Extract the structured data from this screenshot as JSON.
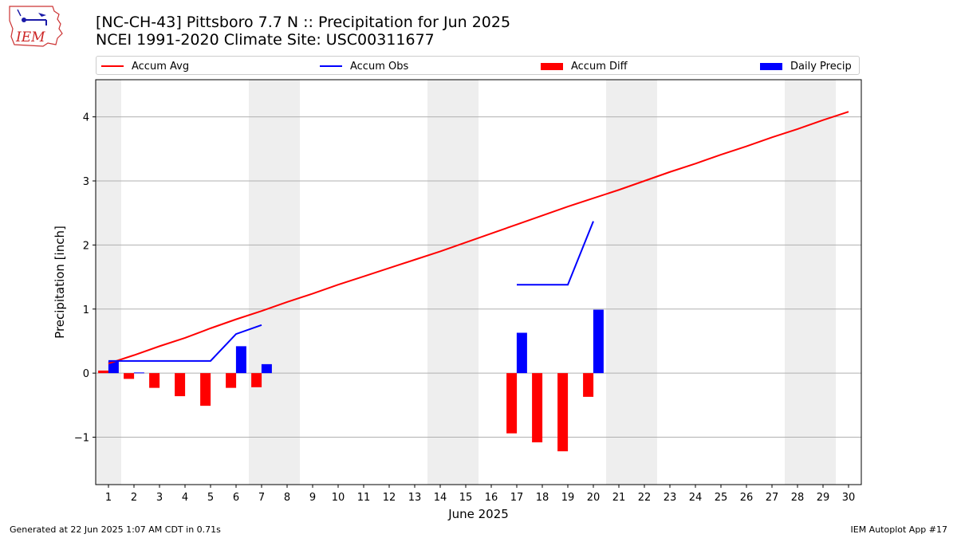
{
  "header": {
    "logo_text": "IEM",
    "title_line1": "[NC-CH-43] Pittsboro 7.7 N :: Precipitation for Jun 2025",
    "title_line2": "NCEI 1991-2020 Climate Site: USC00311677"
  },
  "legend": {
    "items": [
      {
        "label": "Accum Avg",
        "color": "#ff0000",
        "kind": "line"
      },
      {
        "label": "Accum Obs",
        "color": "#0000ff",
        "kind": "line"
      },
      {
        "label": "Accum Diff",
        "color": "#ff0000",
        "kind": "bar"
      },
      {
        "label": "Daily Precip",
        "color": "#0000ff",
        "kind": "bar"
      }
    ]
  },
  "footer": {
    "left": "Generated at 22 Jun 2025 1:07 AM CDT in 0.71s",
    "right": "IEM Autoplot App #17"
  },
  "chart_data": {
    "type": "bar",
    "xlabel": "June 2025",
    "ylabel": "Precipitation [inch]",
    "xlim": [
      0.5,
      30.5
    ],
    "ylim": [
      -1.74,
      4.58
    ],
    "yticks": [
      -1,
      0,
      1,
      2,
      3,
      4
    ],
    "ytick_labels": [
      "−1",
      "0",
      "1",
      "2",
      "3",
      "4"
    ],
    "x": [
      1,
      2,
      3,
      4,
      5,
      6,
      7,
      8,
      9,
      10,
      11,
      12,
      13,
      14,
      15,
      16,
      17,
      18,
      19,
      20,
      21,
      22,
      23,
      24,
      25,
      26,
      27,
      28,
      29,
      30
    ],
    "weekend_bands": [
      [
        0.5,
        1.5
      ],
      [
        6.5,
        8.5
      ],
      [
        13.5,
        15.5
      ],
      [
        20.5,
        22.5
      ],
      [
        27.5,
        29.5
      ]
    ],
    "grid": "y",
    "series": [
      {
        "name": "Accum Avg",
        "type": "line",
        "color": "#ff0000",
        "x": [
          1,
          2,
          3,
          4,
          5,
          6,
          7,
          8,
          9,
          10,
          11,
          12,
          13,
          14,
          15,
          16,
          17,
          18,
          19,
          20,
          21,
          22,
          23,
          24,
          25,
          26,
          27,
          28,
          29,
          30
        ],
        "values": [
          0.15,
          0.28,
          0.42,
          0.55,
          0.7,
          0.84,
          0.97,
          1.11,
          1.24,
          1.38,
          1.51,
          1.64,
          1.77,
          1.9,
          2.04,
          2.18,
          2.32,
          2.46,
          2.6,
          2.73,
          2.86,
          3.0,
          3.14,
          3.27,
          3.41,
          3.54,
          3.68,
          3.81,
          3.95,
          4.08
        ]
      },
      {
        "name": "Accum Obs",
        "type": "line",
        "color": "#0000ff",
        "segments": [
          {
            "x": [
              1,
              2,
              3,
              4,
              5,
              6,
              7
            ],
            "values": [
              0.19,
              0.19,
              0.19,
              0.19,
              0.19,
              0.61,
              0.75
            ]
          },
          {
            "x": [
              17,
              18,
              19,
              20
            ],
            "values": [
              1.38,
              1.38,
              1.38,
              2.37
            ]
          }
        ]
      },
      {
        "name": "Accum Diff",
        "type": "bar",
        "color": "#ff0000",
        "x": [
          1,
          2,
          3,
          4,
          5,
          6,
          7,
          17,
          18,
          19,
          20
        ],
        "values": [
          0.04,
          -0.09,
          -0.23,
          -0.36,
          -0.51,
          -0.23,
          -0.22,
          -0.94,
          -1.08,
          -1.22,
          -0.37
        ]
      },
      {
        "name": "Daily Precip",
        "type": "bar",
        "color": "#0000ff",
        "x": [
          1,
          2,
          6,
          7,
          17,
          20
        ],
        "values": [
          0.19,
          0.01,
          0.42,
          0.14,
          0.63,
          0.99
        ]
      }
    ]
  }
}
